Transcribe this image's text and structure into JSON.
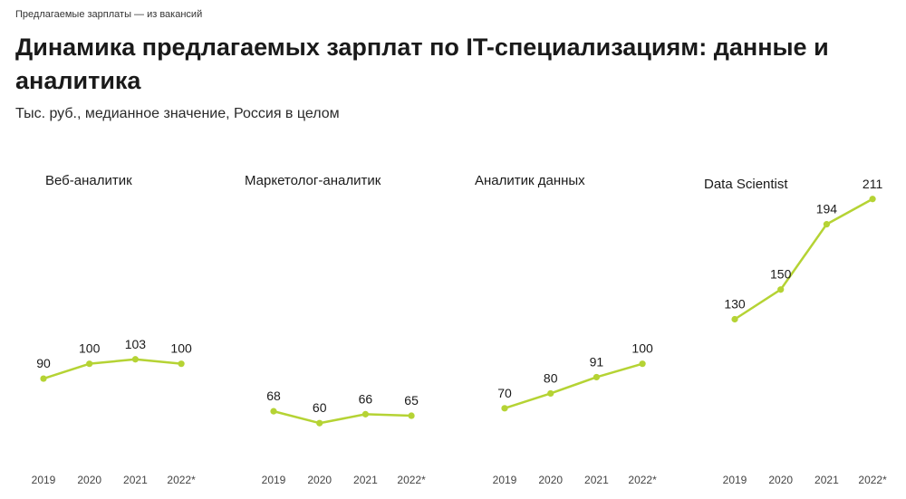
{
  "header": {
    "source": "Предлагаемые зарплаты — из вакансий",
    "title": "Динамика предлагаемых зарплат по IT-специализациям: данные и аналитика",
    "subtitle": "Тыс. руб., медианное значение, Россия в целом"
  },
  "colors": {
    "line": "#b5d334",
    "text": "#1a1a1a",
    "tick": "#444444"
  },
  "chart_data": [
    {
      "type": "line",
      "title": "Веб-аналитик",
      "categories": [
        "2019",
        "2020",
        "2021",
        "2022*"
      ],
      "values": [
        90,
        100,
        103,
        100
      ],
      "ylim": [
        40,
        220
      ]
    },
    {
      "type": "line",
      "title": "Маркетолог-аналитик",
      "categories": [
        "2019",
        "2020",
        "2021",
        "2022*"
      ],
      "values": [
        68,
        60,
        66,
        65
      ],
      "ylim": [
        40,
        220
      ]
    },
    {
      "type": "line",
      "title": "Аналитик данных",
      "categories": [
        "2019",
        "2020",
        "2021",
        "2022*"
      ],
      "values": [
        70,
        80,
        91,
        100
      ],
      "ylim": [
        40,
        220
      ]
    },
    {
      "type": "line",
      "title": "Data Scientist",
      "categories": [
        "2019",
        "2020",
        "2021",
        "2022*"
      ],
      "values": [
        130,
        150,
        194,
        211
      ],
      "ylim": [
        40,
        220
      ]
    }
  ]
}
